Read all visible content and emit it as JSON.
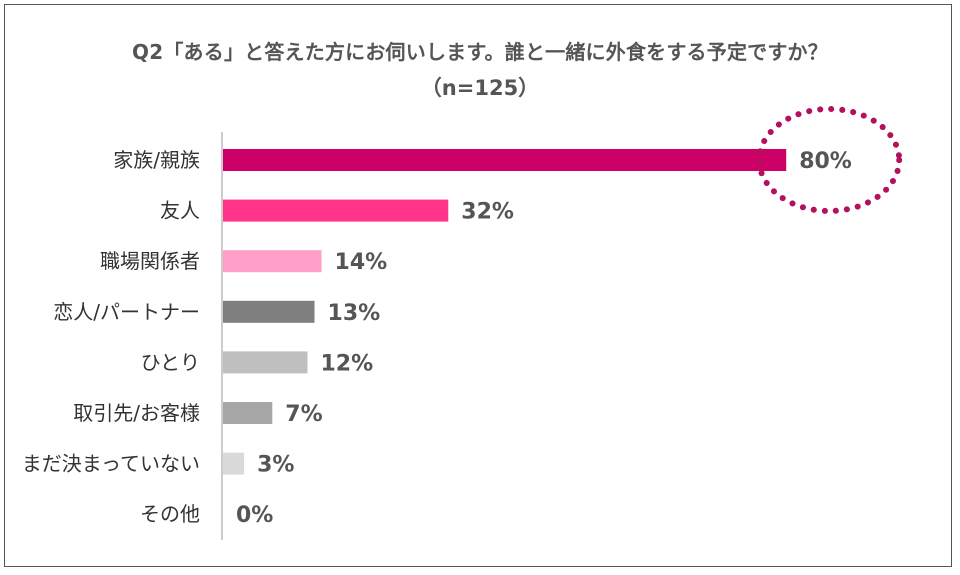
{
  "chart_data": {
    "type": "bar",
    "orientation": "horizontal",
    "title": "Q2「ある」と答えた方にお伺いします。誰と一緒に外食をする予定ですか？",
    "subtitle": "（n=125）",
    "categories": [
      "家族/親族",
      "友人",
      "職場関係者",
      "恋人/パートナー",
      "ひとり",
      "取引先/お客様",
      "まだ決まっていない",
      "その他"
    ],
    "values": [
      80,
      32,
      14,
      13,
      12,
      7,
      3,
      0
    ],
    "value_labels": [
      "80%",
      "32%",
      "14%",
      "13%",
      "12%",
      "7%",
      "3%",
      "0%"
    ],
    "colors": [
      "#cc0066",
      "#ff3388",
      "#ff9fc8",
      "#7f7f7f",
      "#bfbfbf",
      "#a6a6a6",
      "#d9d9d9",
      "#d9d9d9"
    ],
    "highlight_color": "#b5105f",
    "xlim": [
      0,
      100
    ],
    "grid": false,
    "legend": "none"
  }
}
